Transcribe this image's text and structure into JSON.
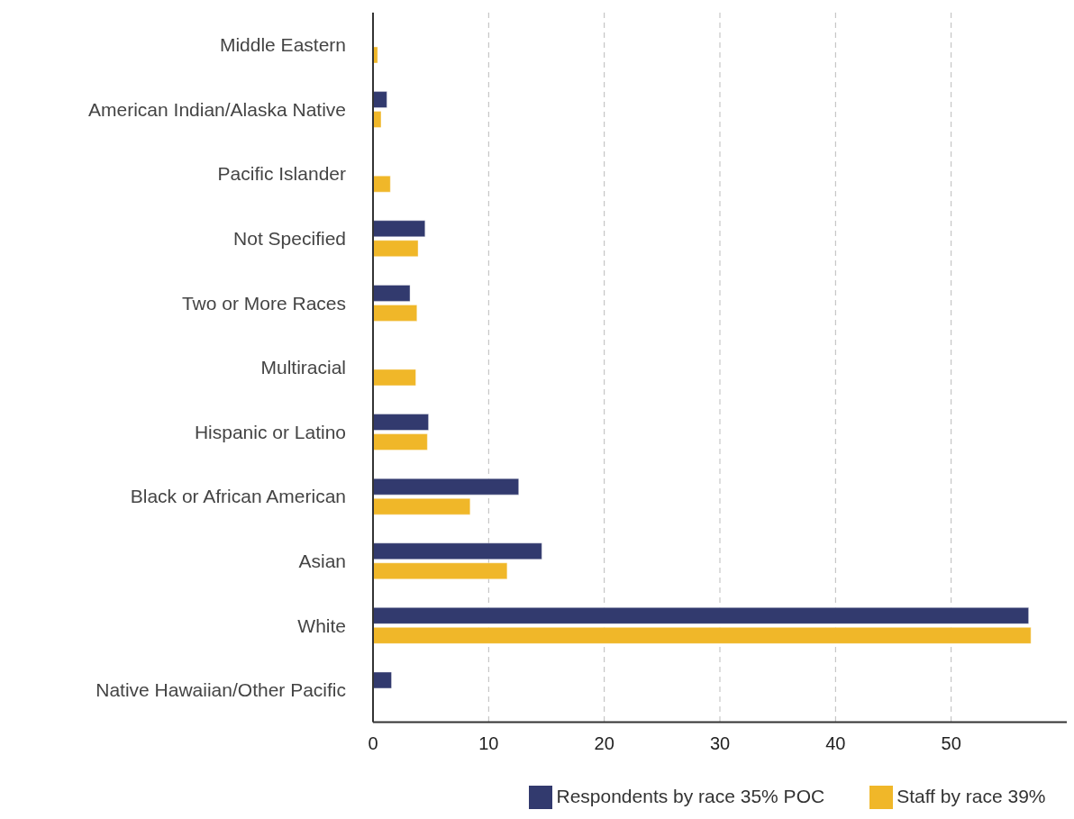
{
  "chart_data": {
    "type": "bar",
    "orientation": "horizontal",
    "categories": [
      "Middle Eastern",
      "American Indian/Alaska Native",
      "Pacific Islander",
      "Not Specified",
      "Two or More Races",
      "Multiracial",
      "Hispanic or Latino",
      "Black or African American",
      "Asian",
      "White",
      "Native Hawaiian/Other Pacific"
    ],
    "series": [
      {
        "name": "Respondents by race 35% POC",
        "color": "#323a6e",
        "values": [
          null,
          1.2,
          null,
          4.5,
          3.2,
          null,
          4.8,
          12.6,
          14.6,
          56.7,
          1.6
        ]
      },
      {
        "name": "Staff by race 39%",
        "color": "#f0b729",
        "values": [
          0.4,
          0.7,
          1.5,
          3.9,
          3.8,
          3.7,
          4.7,
          8.4,
          11.6,
          56.9,
          null
        ]
      }
    ],
    "xlim": [
      0,
      60
    ],
    "xticks": [
      0,
      10,
      20,
      30,
      40,
      50
    ],
    "grid": "x",
    "legend": "bottom"
  }
}
